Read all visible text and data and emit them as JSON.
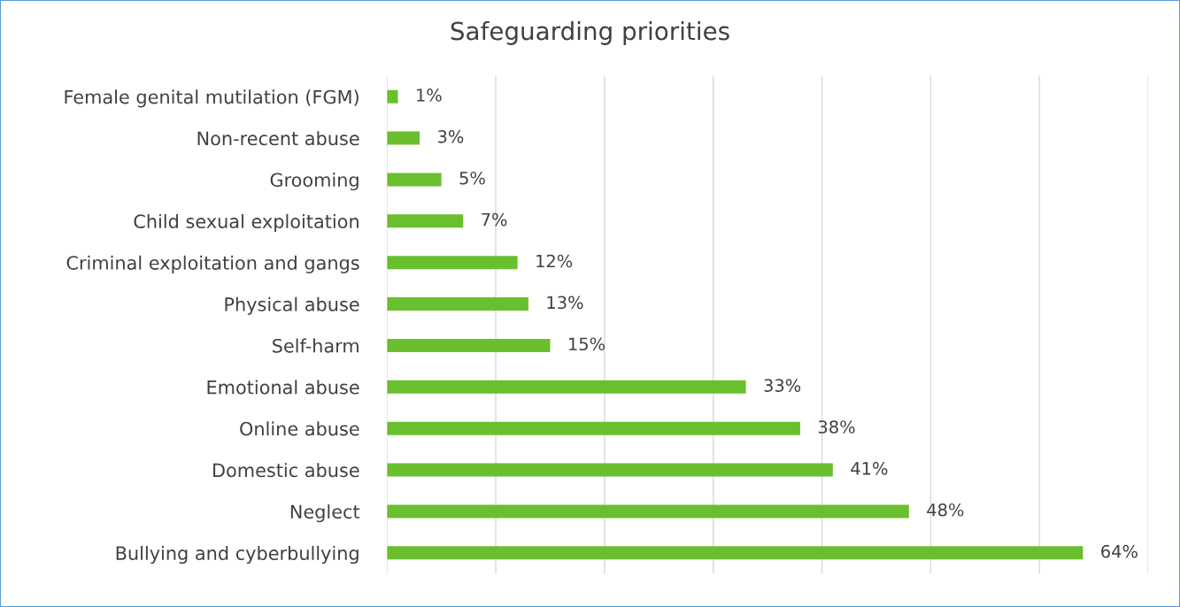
{
  "chart_data": {
    "type": "bar",
    "orientation": "horizontal",
    "title": "Safeguarding priorities",
    "categories": [
      "Female genital mutilation (FGM)",
      "Non-recent abuse",
      "Grooming",
      "Child sexual exploitation",
      "Criminal exploitation and gangs",
      "Physical abuse",
      "Self-harm",
      "Emotional abuse",
      "Online abuse",
      "Domestic abuse",
      "Neglect",
      "Bullying and cyberbullying"
    ],
    "values": [
      1,
      3,
      5,
      7,
      12,
      13,
      15,
      33,
      38,
      41,
      48,
      64
    ],
    "value_labels": [
      "1%",
      "3%",
      "5%",
      "7%",
      "12%",
      "13%",
      "15%",
      "33%",
      "38%",
      "41%",
      "48%",
      "64%"
    ],
    "color": "#6abf2e",
    "xlim": [
      0,
      70
    ],
    "xticks": [
      {
        "value": 0,
        "label": null
      },
      {
        "value": 10,
        "label": null
      },
      {
        "value": 20,
        "label": null
      },
      {
        "value": 30,
        "label": null
      },
      {
        "value": 40,
        "label": null
      },
      {
        "value": 50,
        "label": null
      },
      {
        "value": 60,
        "label": null
      },
      {
        "value": 70,
        "label": null
      }
    ],
    "tick_labels": "y",
    "grid": "x",
    "legend": false
  }
}
